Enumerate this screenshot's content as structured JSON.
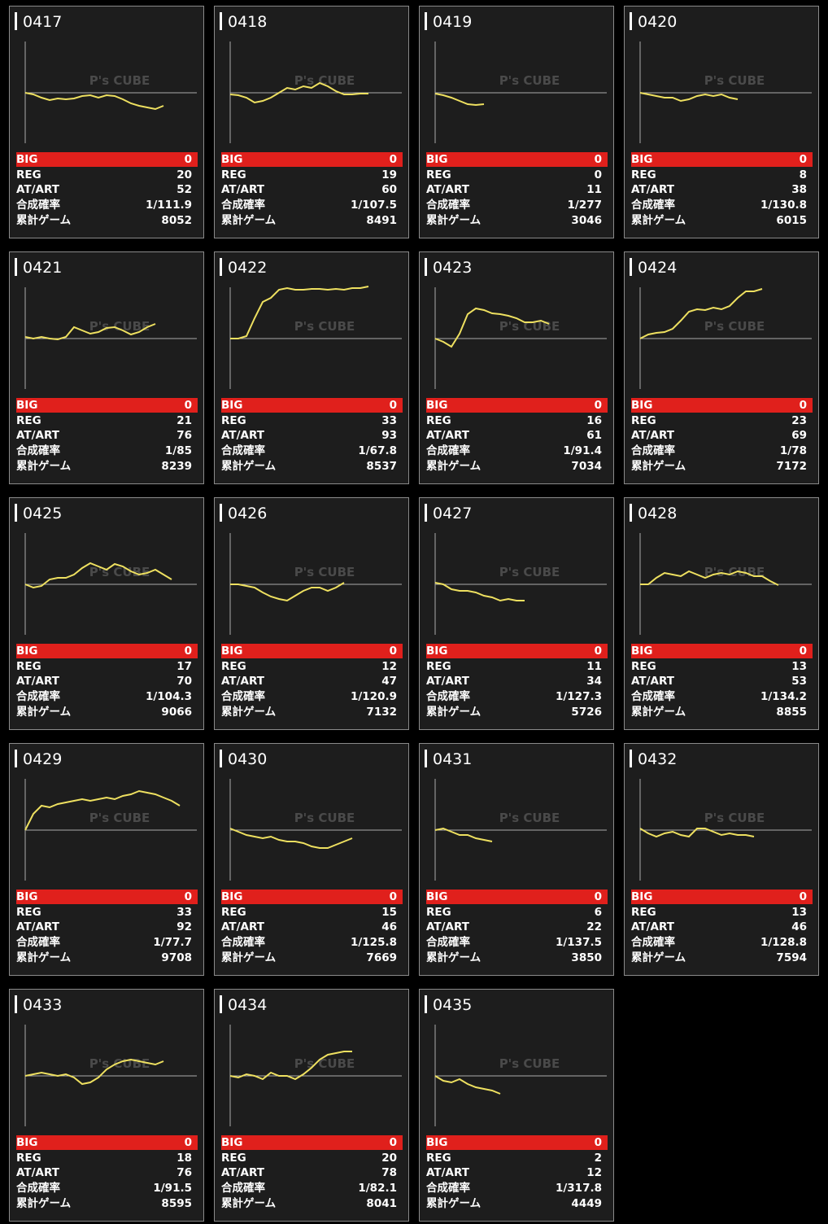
{
  "watermark": "P's CUBE",
  "labels": [
    "BIG",
    "REG",
    "AT/ART",
    "合成確率",
    "累計ゲーム"
  ],
  "machines": [
    {
      "id": "0417",
      "big": 0,
      "reg": 20,
      "at": 52,
      "prob": "1/111.9",
      "games": 8052,
      "graph": [
        0,
        -2,
        -6,
        -9,
        -7,
        -8,
        -7,
        -4,
        -3,
        -6,
        -3,
        -4,
        -8,
        -13,
        -16,
        -18,
        -20,
        -16
      ]
    },
    {
      "id": "0418",
      "big": 0,
      "reg": 19,
      "at": 60,
      "prob": "1/107.5",
      "games": 8491,
      "graph": [
        -2,
        -3,
        -6,
        -12,
        -10,
        -6,
        0,
        6,
        4,
        8,
        6,
        12,
        8,
        2,
        -2,
        -2,
        -1,
        -1
      ]
    },
    {
      "id": "0419",
      "big": 0,
      "reg": 0,
      "at": 11,
      "prob": "1/277",
      "games": 3046,
      "graph": [
        -1,
        -3,
        -6,
        -10,
        -14,
        -15,
        -14
      ]
    },
    {
      "id": "0420",
      "big": 0,
      "reg": 8,
      "at": 38,
      "prob": "1/130.8",
      "games": 6015,
      "graph": [
        0,
        -2,
        -4,
        -6,
        -6,
        -10,
        -8,
        -4,
        -2,
        -4,
        -2,
        -6,
        -8
      ]
    },
    {
      "id": "0421",
      "big": 0,
      "reg": 21,
      "at": 76,
      "prob": "1/85",
      "games": 8239,
      "graph": [
        2,
        0,
        2,
        0,
        -1,
        2,
        14,
        10,
        6,
        8,
        13,
        14,
        10,
        5,
        8,
        14,
        18
      ]
    },
    {
      "id": "0422",
      "big": 0,
      "reg": 33,
      "at": 93,
      "prob": "1/67.8",
      "games": 8537,
      "graph": [
        0,
        0,
        3,
        25,
        45,
        50,
        60,
        62,
        60,
        60,
        61,
        61,
        60,
        61,
        60,
        62,
        62,
        64
      ]
    },
    {
      "id": "0423",
      "big": 0,
      "reg": 16,
      "at": 61,
      "prob": "1/91.4",
      "games": 7034,
      "graph": [
        0,
        -4,
        -10,
        6,
        30,
        37,
        35,
        31,
        30,
        28,
        25,
        20,
        20,
        22,
        18
      ]
    },
    {
      "id": "0424",
      "big": 0,
      "reg": 23,
      "at": 69,
      "prob": "1/78",
      "games": 7172,
      "graph": [
        0,
        5,
        7,
        8,
        12,
        22,
        33,
        36,
        35,
        38,
        36,
        40,
        50,
        58,
        58,
        61
      ]
    },
    {
      "id": "0425",
      "big": 0,
      "reg": 17,
      "at": 70,
      "prob": "1/104.3",
      "games": 9066,
      "graph": [
        0,
        -4,
        -2,
        6,
        8,
        8,
        12,
        20,
        26,
        22,
        18,
        25,
        22,
        16,
        12,
        14,
        18,
        12,
        6
      ]
    },
    {
      "id": "0426",
      "big": 0,
      "reg": 12,
      "at": 47,
      "prob": "1/120.9",
      "games": 7132,
      "graph": [
        0,
        0,
        -2,
        -4,
        -10,
        -15,
        -18,
        -20,
        -14,
        -8,
        -4,
        -4,
        -8,
        -4,
        2
      ]
    },
    {
      "id": "0427",
      "big": 0,
      "reg": 11,
      "at": 34,
      "prob": "1/127.3",
      "games": 5726,
      "graph": [
        2,
        0,
        -6,
        -8,
        -8,
        -10,
        -14,
        -16,
        -20,
        -18,
        -20,
        -20
      ]
    },
    {
      "id": "0428",
      "big": 0,
      "reg": 13,
      "at": 53,
      "prob": "1/134.2",
      "games": 8855,
      "graph": [
        0,
        0,
        8,
        14,
        12,
        10,
        16,
        12,
        8,
        12,
        14,
        12,
        16,
        14,
        10,
        10,
        4,
        -1
      ]
    },
    {
      "id": "0429",
      "big": 0,
      "reg": 33,
      "at": 92,
      "prob": "1/77.7",
      "games": 9708,
      "graph": [
        0,
        20,
        30,
        28,
        32,
        34,
        36,
        38,
        36,
        38,
        40,
        38,
        42,
        44,
        48,
        46,
        44,
        40,
        36,
        30
      ]
    },
    {
      "id": "0430",
      "big": 0,
      "reg": 15,
      "at": 46,
      "prob": "1/125.8",
      "games": 7669,
      "graph": [
        2,
        -2,
        -6,
        -8,
        -10,
        -8,
        -12,
        -14,
        -14,
        -16,
        -20,
        -22,
        -22,
        -18,
        -14,
        -10
      ]
    },
    {
      "id": "0431",
      "big": 0,
      "reg": 6,
      "at": 22,
      "prob": "1/137.5",
      "games": 3850,
      "graph": [
        0,
        2,
        -2,
        -6,
        -6,
        -10,
        -12,
        -14
      ]
    },
    {
      "id": "0432",
      "big": 0,
      "reg": 13,
      "at": 46,
      "prob": "1/128.8",
      "games": 7594,
      "graph": [
        2,
        -4,
        -8,
        -4,
        -2,
        -6,
        -8,
        2,
        2,
        -2,
        -6,
        -4,
        -6,
        -6,
        -8
      ]
    },
    {
      "id": "0433",
      "big": 0,
      "reg": 18,
      "at": 76,
      "prob": "1/91.5",
      "games": 8595,
      "graph": [
        0,
        2,
        4,
        2,
        0,
        2,
        -2,
        -10,
        -8,
        -2,
        8,
        14,
        18,
        20,
        18,
        16,
        14,
        18
      ]
    },
    {
      "id": "0434",
      "big": 0,
      "reg": 20,
      "at": 78,
      "prob": "1/82.1",
      "games": 8041,
      "graph": [
        0,
        -2,
        2,
        0,
        -4,
        4,
        0,
        0,
        -4,
        2,
        10,
        20,
        26,
        28,
        30,
        30
      ]
    },
    {
      "id": "0435",
      "big": 0,
      "reg": 2,
      "at": 12,
      "prob": "1/317.8",
      "games": 4449,
      "graph": [
        0,
        -6,
        -8,
        -4,
        -10,
        -14,
        -16,
        -18,
        -22
      ]
    }
  ]
}
